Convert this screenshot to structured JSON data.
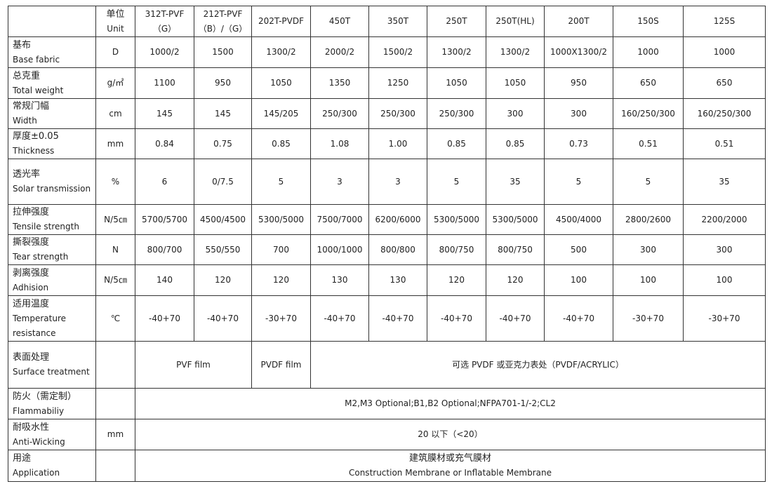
{
  "header": {
    "unit_zh": "单位",
    "unit_en": "Unit",
    "products": [
      [
        "312T-PVF",
        "（G）"
      ],
      [
        "212T-PVF",
        "（B）/（G）"
      ],
      [
        "202T-PVDF"
      ],
      [
        "450T"
      ],
      [
        "350T"
      ],
      [
        "250T"
      ],
      [
        "250T(HL)"
      ],
      [
        "200T"
      ],
      [
        "150S"
      ],
      [
        "125S"
      ]
    ]
  },
  "rows": [
    {
      "zh": "基布",
      "en": "Base fabric",
      "unit": "D",
      "values": [
        "1000/2",
        "1500",
        "1300/2",
        "2000/2",
        "1500/2",
        "1300/2",
        "1300/2",
        "1000X1300/2",
        "1000",
        "1000"
      ]
    },
    {
      "zh": "总克重",
      "en": "Total weight",
      "unit": "g/㎡",
      "values": [
        "1100",
        "950",
        "1050",
        "1350",
        "1250",
        "1050",
        "1050",
        "950",
        "650",
        "650"
      ]
    },
    {
      "zh": "常规门幅",
      "en": "Width",
      "unit": "cm",
      "values": [
        "145",
        "145",
        "145/205",
        "250/300",
        "250/300",
        "250/300",
        "300",
        "300",
        "160/250/300",
        "160/250/300"
      ]
    },
    {
      "zh": "厚度±0.05",
      "en": "Thickness",
      "unit": "mm",
      "values": [
        "0.84",
        "0.75",
        "0.85",
        "1.08",
        "1.00",
        "0.85",
        "0.85",
        "0.73",
        "0.51",
        "0.51"
      ]
    },
    {
      "zh": "透光率",
      "en": "Solar transmission",
      "unit": "%",
      "values": [
        "6",
        "0/7.5",
        "5",
        "3",
        "3",
        "5",
        "35",
        "5",
        "5",
        "35"
      ]
    },
    {
      "zh": "拉伸强度",
      "en": "Tensile strength",
      "unit": "N/5㎝",
      "values": [
        "5700/5700",
        "4500/4500",
        "5300/5000",
        "7500/7000",
        "6200/6000",
        "5300/5000",
        "5300/5000",
        "4500/4000",
        "2800/2600",
        "2200/2000"
      ]
    },
    {
      "zh": "撕裂强度",
      "en": "Tear strength",
      "unit": "N",
      "values": [
        "800/700",
        "550/550",
        "700",
        "1000/1000",
        "800/800",
        "800/750",
        "800/750",
        "500",
        "300",
        "300"
      ]
    },
    {
      "zh": "剥离强度",
      "en": "Adhision",
      "unit": "N/5㎝",
      "values": [
        "140",
        "120",
        "120",
        "130",
        "130",
        "120",
        "120",
        "100",
        "100",
        "100"
      ]
    },
    {
      "zh": "适用温度",
      "en": "Temperature resistance",
      "unit": "℃",
      "values": [
        "-40+70",
        "-40+70",
        "-30+70",
        "-40+70",
        "-40+70",
        "-40+70",
        "-40+70",
        "-40+70",
        "-30+70",
        "-30+70"
      ]
    }
  ],
  "surface": {
    "zh": "表面处理",
    "en": "Surface treatment",
    "pvf": "PVF film",
    "pvdf": "PVDF film",
    "other": "可选 PVDF 或亚克力表处（PVDF/ACRYLIC）"
  },
  "flammability": {
    "zh": "防火（需定制）",
    "en": "Flammabiliy",
    "value": "M2,M3 Optional;B1,B2 Optional;NFPA701-1/-2;CL2"
  },
  "antiwicking": {
    "zh": "耐吸水性",
    "en": "Anti-Wicking",
    "unit": "mm",
    "value": "20 以下（<20）"
  },
  "application": {
    "zh": "用途",
    "en": "Application",
    "value_zh": "建筑膜材或充气膜材",
    "value_en": "Construction Membrane or Inflatable Membrane"
  }
}
